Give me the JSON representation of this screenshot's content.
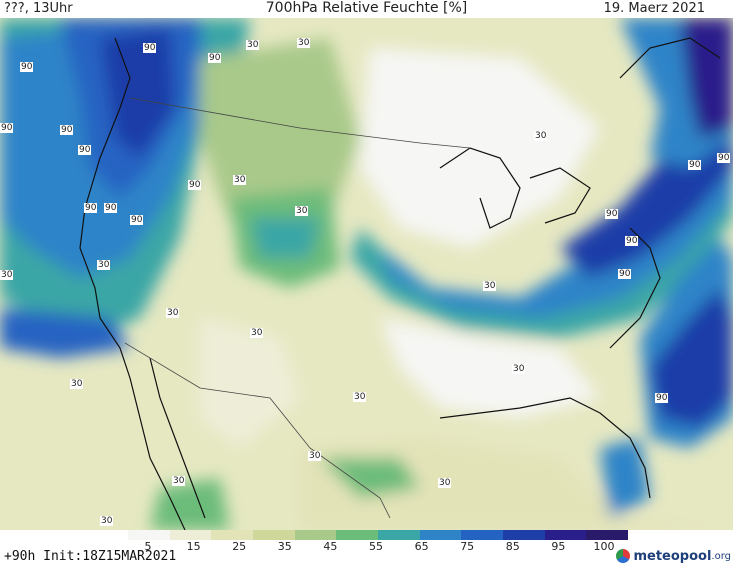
{
  "header": {
    "left": "???, 13Uhr",
    "title": "700hPa Relative Feuchte [%]",
    "date": "19. Maerz 2021"
  },
  "legend": {
    "ticks": [
      "5",
      "15",
      "25",
      "35",
      "45",
      "55",
      "65",
      "75",
      "85",
      "95",
      "100"
    ],
    "colors": [
      "#f6f6f4",
      "#eeeed8",
      "#e3e3b8",
      "#cfd79a",
      "#a9c98a",
      "#6cbc7a",
      "#3aa6a6",
      "#2f84c8",
      "#2563c2",
      "#1e3ea8",
      "#2a1f8a",
      "#2a1a6a"
    ]
  },
  "footer": {
    "init": "+90h Init:18Z15MAR2021",
    "brand": "meteopool",
    "tld": ".org"
  },
  "contour_labels": {
    "values": [
      "90",
      "90",
      "90",
      "90",
      "90",
      "90",
      "90",
      "90",
      "90",
      "90",
      "30",
      "30",
      "30",
      "30",
      "30",
      "30",
      "30",
      "30",
      "30",
      "30",
      "30",
      "30",
      "30",
      "30",
      "30",
      "90",
      "90",
      "90",
      "90",
      "90",
      "90",
      "30",
      "30"
    ]
  }
}
